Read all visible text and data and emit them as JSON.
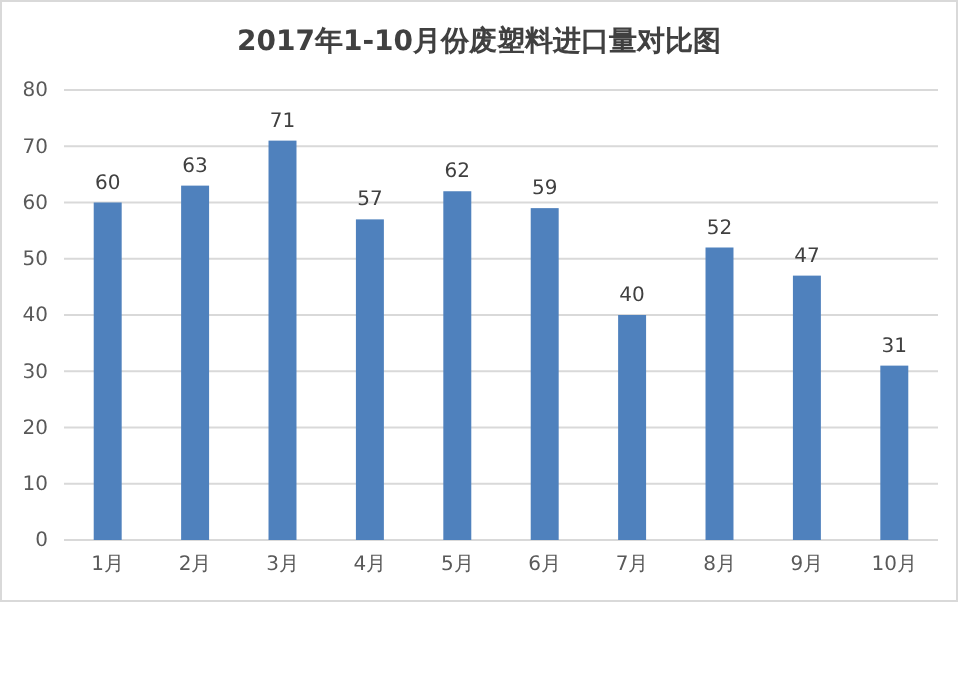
{
  "chart_data": {
    "type": "bar",
    "title": "2017年1-10月份废塑料进口量对比图",
    "categories": [
      "1月",
      "2月",
      "3月",
      "4月",
      "5月",
      "6月",
      "7月",
      "8月",
      "9月",
      "10月"
    ],
    "values": [
      60,
      63,
      71,
      57,
      62,
      59,
      40,
      52,
      47,
      31
    ],
    "color": "#4f81bd",
    "ylim": [
      0,
      80
    ],
    "yticks": [
      0,
      10,
      20,
      30,
      40,
      50,
      60,
      70,
      80
    ],
    "grid": "y",
    "data_labels": true
  }
}
